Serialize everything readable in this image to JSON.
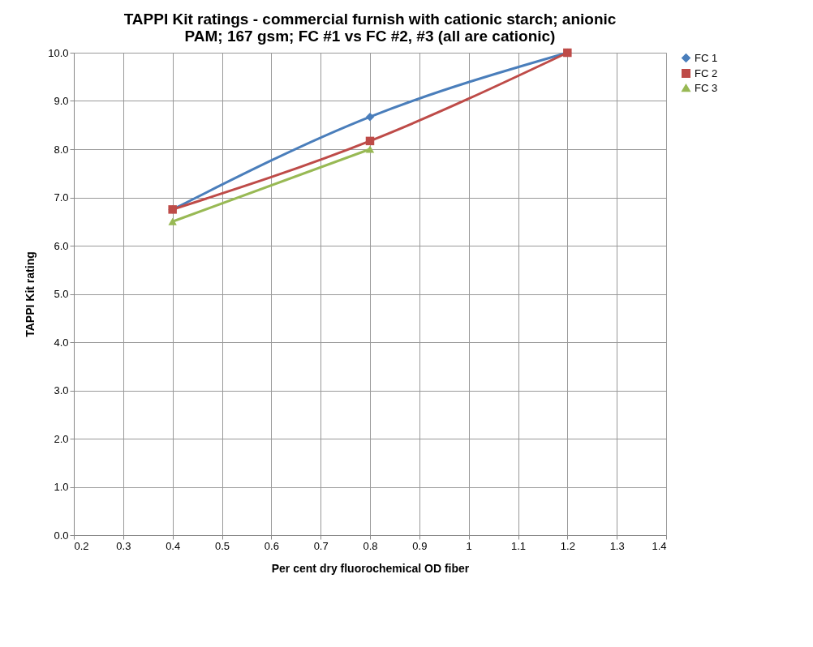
{
  "chart_data": {
    "type": "line",
    "title": "TAPPI Kit ratings - commercial furnish with cationic starch; anionic PAM; 167 gsm; FC #1 vs FC #2, #3 (all are cationic)",
    "xlabel": "Per cent dry fluorochemical OD fiber",
    "ylabel": "TAPPI Kit rating",
    "x": [
      0.4,
      0.8,
      1.2
    ],
    "series": [
      {
        "name": "FC 1",
        "color": "#4a7ebb",
        "marker": "diamond",
        "values": [
          6.75,
          8.67,
          10.0
        ]
      },
      {
        "name": "FC 2",
        "color": "#be4b48",
        "marker": "square",
        "values": [
          6.75,
          8.17,
          10.0
        ]
      },
      {
        "name": "FC 3",
        "color": "#98b954",
        "marker": "triangle",
        "values": [
          6.5,
          8.0,
          null
        ]
      }
    ],
    "xlim": [
      0.2,
      1.4
    ],
    "xticks": [
      0.2,
      0.3,
      0.4,
      0.5,
      0.6,
      0.7,
      0.8,
      0.9,
      1,
      1.1,
      1.2,
      1.3,
      1.4
    ],
    "ylim": [
      0,
      10
    ],
    "yticks": [
      {
        "value": 0,
        "label": "0.0"
      },
      {
        "value": 1,
        "label": "1.0"
      },
      {
        "value": 2,
        "label": "2.0"
      },
      {
        "value": 3,
        "label": "3.0"
      },
      {
        "value": 4,
        "label": "4.0"
      },
      {
        "value": 5,
        "label": "5.0"
      },
      {
        "value": 6,
        "label": "6.0"
      },
      {
        "value": 7,
        "label": "7.0"
      },
      {
        "value": 8,
        "label": "8.0"
      },
      {
        "value": 9,
        "label": "9.0"
      },
      {
        "value": 10,
        "label": "10.0"
      }
    ],
    "grid": true,
    "legend": "right",
    "line_style": "solid"
  }
}
